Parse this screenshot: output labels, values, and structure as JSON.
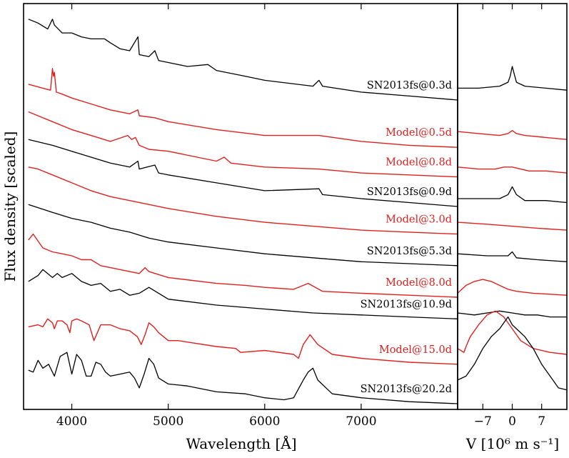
{
  "colors": {
    "observed": "#000000",
    "model": "#e0201e"
  },
  "chart_data": [
    {
      "type": "line",
      "xlabel": "Wavelength [Å]",
      "ylabel": "Flux density [scaled]",
      "xlim": [
        3500,
        8000
      ],
      "x_ticks": [
        4000,
        5000,
        6000,
        7000
      ],
      "x_tick_labels": [
        "4000",
        "5000",
        "6000",
        "7000"
      ],
      "y_ticks_shown": false,
      "series": [
        {
          "name": "SN2013fs@0.3d",
          "color": "observed",
          "x": [
            3550,
            3650,
            3750,
            3800,
            3820,
            3840,
            3900,
            4000,
            4100,
            4200,
            4340,
            4400,
            4500,
            4600,
            4686,
            4700,
            4800,
            4861,
            4900,
            5000,
            5200,
            5411,
            5500,
            5800,
            6000,
            6500,
            6563,
            6600,
            7000,
            7500,
            8000
          ],
          "y": [
            0.95,
            0.93,
            0.9,
            0.95,
            0.92,
            0.91,
            0.88,
            0.88,
            0.86,
            0.85,
            0.85,
            0.83,
            0.8,
            0.79,
            0.86,
            0.77,
            0.76,
            0.79,
            0.74,
            0.73,
            0.71,
            0.72,
            0.69,
            0.66,
            0.64,
            0.61,
            0.64,
            0.61,
            0.58,
            0.56,
            0.54
          ]
        },
        {
          "name": "Model@0.5d",
          "color": "model",
          "x": [
            3550,
            3700,
            3780,
            3800,
            3810,
            3820,
            3840,
            3900,
            4000,
            4200,
            4400,
            4600,
            4686,
            4700,
            4861,
            5000,
            5500,
            6000,
            6563,
            7000,
            7500,
            8000
          ],
          "y": [
            0.62,
            0.6,
            0.59,
            0.7,
            0.66,
            0.68,
            0.58,
            0.57,
            0.55,
            0.52,
            0.49,
            0.47,
            0.49,
            0.46,
            0.45,
            0.43,
            0.39,
            0.36,
            0.36,
            0.33,
            0.31,
            0.3
          ]
        },
        {
          "name": "Model@0.8d",
          "color": "model",
          "x": [
            3550,
            3800,
            4000,
            4200,
            4400,
            4580,
            4620,
            4660,
            4700,
            4800,
            5000,
            5500,
            5580,
            5650,
            6000,
            6563,
            7000,
            7500,
            8000
          ],
          "y": [
            0.48,
            0.43,
            0.39,
            0.36,
            0.33,
            0.36,
            0.34,
            0.35,
            0.31,
            0.29,
            0.28,
            0.23,
            0.25,
            0.22,
            0.2,
            0.19,
            0.17,
            0.16,
            0.15
          ]
        },
        {
          "name": "SN2013fs@0.9d",
          "color": "observed",
          "x": [
            3550,
            3800,
            4000,
            4200,
            4400,
            4600,
            4686,
            4700,
            4861,
            4900,
            5000,
            5500,
            6000,
            6563,
            6600,
            7000,
            7500,
            8000
          ],
          "y": [
            0.34,
            0.31,
            0.28,
            0.25,
            0.22,
            0.2,
            0.23,
            0.19,
            0.21,
            0.17,
            0.16,
            0.12,
            0.08,
            0.09,
            0.06,
            0.04,
            0.02,
            0.0
          ]
        },
        {
          "name": "Model@3.0d",
          "color": "model",
          "x": [
            3550,
            3650,
            3800,
            4000,
            4200,
            4400,
            4600,
            4800,
            5000,
            5500,
            6000,
            6500,
            7000,
            7500,
            8000
          ],
          "y": [
            0.2,
            0.19,
            0.16,
            0.12,
            0.08,
            0.05,
            0.03,
            0.01,
            -0.01,
            -0.05,
            -0.08,
            -0.1,
            -0.12,
            -0.13,
            -0.14
          ]
        },
        {
          "name": "SN2013fs@5.3d",
          "color": "observed",
          "x": [
            3550,
            3800,
            4000,
            4200,
            4400,
            4600,
            4800,
            5000,
            5500,
            6000,
            6500,
            7000,
            7500,
            8000
          ],
          "y": [
            0.01,
            -0.03,
            -0.06,
            -0.08,
            -0.11,
            -0.13,
            -0.16,
            -0.18,
            -0.21,
            -0.24,
            -0.26,
            -0.28,
            -0.29,
            -0.3
          ]
        },
        {
          "name": "Model@8.0d",
          "color": "model",
          "x": [
            3550,
            3600,
            3700,
            3800,
            3900,
            4000,
            4100,
            4200,
            4300,
            4400,
            4600,
            4700,
            4760,
            4800,
            5000,
            5500,
            5800,
            6000,
            6300,
            6450,
            6600,
            7000,
            7500,
            8000
          ],
          "y": [
            -0.17,
            -0.14,
            -0.21,
            -0.23,
            -0.24,
            -0.25,
            -0.27,
            -0.27,
            -0.3,
            -0.31,
            -0.33,
            -0.34,
            -0.31,
            -0.33,
            -0.36,
            -0.39,
            -0.4,
            -0.41,
            -0.42,
            -0.39,
            -0.43,
            -0.44,
            -0.45,
            -0.46
          ]
        },
        {
          "name": "SN2013fs@10.9d",
          "color": "observed",
          "x": [
            3550,
            3650,
            3700,
            3800,
            3850,
            3900,
            4000,
            4100,
            4200,
            4300,
            4400,
            4500,
            4600,
            4700,
            4800,
            5000,
            5500,
            6000,
            6500,
            7000,
            7500,
            8000
          ],
          "y": [
            -0.38,
            -0.35,
            -0.32,
            -0.36,
            -0.34,
            -0.36,
            -0.34,
            -0.38,
            -0.4,
            -0.39,
            -0.43,
            -0.42,
            -0.45,
            -0.44,
            -0.41,
            -0.47,
            -0.5,
            -0.52,
            -0.54,
            -0.55,
            -0.56,
            -0.57
          ]
        },
        {
          "name": "Model@15.0d",
          "color": "model",
          "x": [
            3550,
            3650,
            3700,
            3750,
            3800,
            3820,
            3850,
            3900,
            3950,
            3980,
            4000,
            4050,
            4100,
            4180,
            4230,
            4300,
            4400,
            4500,
            4600,
            4680,
            4720,
            4760,
            4800,
            4850,
            4900,
            5000,
            5100,
            5500,
            5700,
            5750,
            6000,
            6300,
            6350,
            6400,
            6470,
            6550,
            6700,
            7000,
            7500,
            8000
          ],
          "y": [
            -0.61,
            -0.6,
            -0.61,
            -0.57,
            -0.59,
            -0.62,
            -0.58,
            -0.58,
            -0.6,
            -0.64,
            -0.58,
            -0.57,
            -0.58,
            -0.6,
            -0.68,
            -0.6,
            -0.6,
            -0.62,
            -0.63,
            -0.66,
            -0.7,
            -0.65,
            -0.59,
            -0.61,
            -0.64,
            -0.68,
            -0.68,
            -0.71,
            -0.72,
            -0.74,
            -0.73,
            -0.75,
            -0.77,
            -0.7,
            -0.65,
            -0.7,
            -0.75,
            -0.77,
            -0.79,
            -0.8
          ]
        },
        {
          "name": "SN2013fs@20.2d",
          "color": "observed",
          "x": [
            3550,
            3600,
            3650,
            3700,
            3760,
            3820,
            3880,
            3950,
            4000,
            4050,
            4100,
            4150,
            4200,
            4250,
            4300,
            4350,
            4400,
            4500,
            4600,
            4650,
            4700,
            4750,
            4800,
            4850,
            4900,
            5000,
            5200,
            5500,
            5800,
            6000,
            6200,
            6300,
            6400,
            6450,
            6500,
            6550,
            6700,
            7000,
            7500,
            8000
          ],
          "y": [
            -0.83,
            -0.84,
            -0.78,
            -0.82,
            -0.8,
            -0.86,
            -0.76,
            -0.74,
            -0.85,
            -0.75,
            -0.78,
            -0.86,
            -0.86,
            -0.79,
            -0.8,
            -0.84,
            -0.86,
            -0.85,
            -0.84,
            -0.87,
            -0.92,
            -0.85,
            -0.77,
            -0.8,
            -0.87,
            -0.9,
            -0.91,
            -0.94,
            -0.95,
            -0.97,
            -0.98,
            -0.97,
            -0.88,
            -0.84,
            -0.82,
            -0.88,
            -0.95,
            -0.97,
            -0.99,
            -1.0
          ]
        }
      ]
    },
    {
      "type": "line",
      "xlabel": "V [10⁶ m s⁻¹]",
      "xlim": [
        -13,
        13
      ],
      "x_ticks": [
        -7,
        0,
        7
      ],
      "x_tick_labels": [
        "−7",
        "0",
        "7"
      ],
      "y_ticks_shown": false,
      "series": [
        {
          "name": "SN2013fs@0.3d",
          "color": "observed",
          "x": [
            -13,
            -8,
            -3,
            -1,
            -0.5,
            0,
            0.5,
            1,
            3,
            8,
            13
          ],
          "y": [
            0.6,
            0.6,
            0.61,
            0.63,
            0.66,
            0.71,
            0.67,
            0.63,
            0.61,
            0.6,
            0.59
          ]
        },
        {
          "name": "Model@0.5d",
          "color": "model",
          "x": [
            -13,
            -8,
            -3,
            -1,
            0,
            1,
            3,
            8,
            13
          ],
          "y": [
            0.38,
            0.37,
            0.36,
            0.37,
            0.385,
            0.37,
            0.36,
            0.35,
            0.34
          ]
        },
        {
          "name": "Model@0.8d",
          "color": "model",
          "x": [
            -13,
            -8,
            -4,
            -2,
            0,
            2,
            4,
            8,
            13
          ],
          "y": [
            0.2,
            0.19,
            0.19,
            0.2,
            0.2,
            0.19,
            0.18,
            0.18,
            0.17
          ]
        },
        {
          "name": "SN2013fs@0.9d",
          "color": "observed",
          "x": [
            -13,
            -8,
            -3,
            -1,
            0,
            1,
            3,
            8,
            13
          ],
          "y": [
            0.04,
            0.04,
            0.04,
            0.06,
            0.1,
            0.06,
            0.03,
            0.03,
            0.02
          ]
        },
        {
          "name": "Model@3.0d",
          "color": "model",
          "x": [
            -13,
            -6,
            0,
            6,
            13
          ],
          "y": [
            -0.08,
            -0.09,
            -0.1,
            -0.11,
            -0.12
          ]
        },
        {
          "name": "SN2013fs@5.3d",
          "color": "observed",
          "x": [
            -13,
            -6,
            -1,
            0,
            1,
            6,
            13
          ],
          "y": [
            -0.24,
            -0.25,
            -0.25,
            -0.23,
            -0.26,
            -0.27,
            -0.28
          ]
        },
        {
          "name": "Model@8.0d",
          "color": "model",
          "x": [
            -13,
            -11,
            -9,
            -7,
            -5,
            -3,
            -1,
            1,
            5,
            13
          ],
          "y": [
            -0.44,
            -0.4,
            -0.38,
            -0.37,
            -0.38,
            -0.4,
            -0.42,
            -0.43,
            -0.44,
            -0.45
          ]
        },
        {
          "name": "SN2013fs@10.9d",
          "color": "observed",
          "x": [
            -13,
            -9,
            -6,
            -3,
            0,
            3,
            6,
            9,
            13
          ],
          "y": [
            -0.54,
            -0.55,
            -0.54,
            -0.53,
            -0.54,
            -0.55,
            -0.55,
            -0.56,
            -0.56
          ]
        },
        {
          "name": "Model@15.0d",
          "color": "model",
          "x": [
            -13,
            -11.5,
            -11,
            -10,
            -8,
            -6,
            -4,
            -2,
            0,
            2,
            5,
            9,
            13
          ],
          "y": [
            -0.72,
            -0.74,
            -0.71,
            -0.66,
            -0.6,
            -0.55,
            -0.53,
            -0.56,
            -0.62,
            -0.68,
            -0.72,
            -0.74,
            -0.75
          ]
        },
        {
          "name": "SN2013fs@20.2d",
          "color": "observed",
          "x": [
            -13,
            -11,
            -9,
            -7,
            -5,
            -3,
            -1,
            0,
            1,
            3,
            5,
            7,
            9,
            11,
            13
          ],
          "y": [
            -0.88,
            -0.86,
            -0.8,
            -0.72,
            -0.66,
            -0.62,
            -0.56,
            -0.6,
            -0.62,
            -0.66,
            -0.72,
            -0.8,
            -0.86,
            -0.92,
            -0.93
          ]
        }
      ]
    }
  ]
}
